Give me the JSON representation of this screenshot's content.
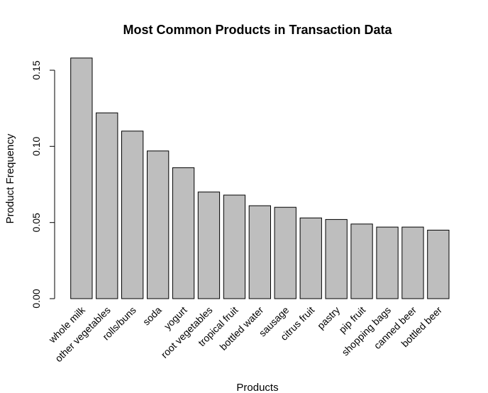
{
  "chart_data": {
    "type": "bar",
    "title": "Most Common Products in Transaction Data",
    "xlabel": "Products",
    "ylabel": "Product Frequency",
    "categories": [
      "whole milk",
      "other vegetables",
      "rolls/buns",
      "soda",
      "yogurt",
      "root vegetables",
      "tropical fruit",
      "bottled water",
      "sausage",
      "citrus fruit",
      "pastry",
      "pip fruit",
      "shopping bags",
      "canned beer",
      "bottled beer"
    ],
    "values": [
      0.158,
      0.122,
      0.11,
      0.097,
      0.086,
      0.07,
      0.068,
      0.061,
      0.06,
      0.053,
      0.052,
      0.049,
      0.047,
      0.047,
      0.045
    ],
    "ylim": [
      0,
      0.16
    ],
    "yticks": [
      0.0,
      0.05,
      0.1,
      0.15
    ],
    "ytick_labels": [
      "0.00",
      "0.05",
      "0.10",
      "0.15"
    ],
    "grid": false,
    "colors": {
      "bar_fill": "#bebebe",
      "bar_stroke": "#000000"
    }
  }
}
